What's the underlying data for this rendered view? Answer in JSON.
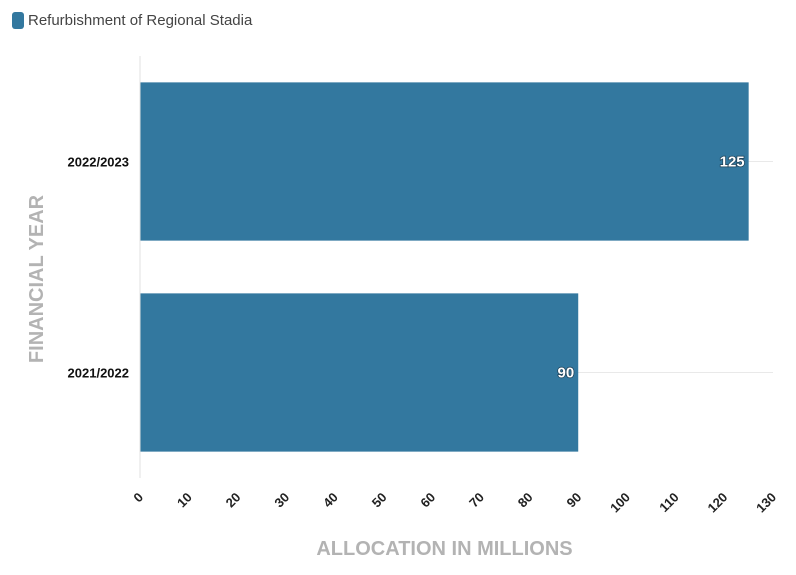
{
  "legend": {
    "label": "Refurbishment of Regional Stadia"
  },
  "chart_data": {
    "type": "bar",
    "orientation": "horizontal",
    "categories": [
      "2022/2023",
      "2021/2022"
    ],
    "series": [
      {
        "name": "Refurbishment of Regional Stadia",
        "values": [
          125,
          90
        ],
        "color": "#33789f"
      }
    ],
    "xlabel": "ALLOCATION IN MILLIONS",
    "ylabel": "FINANCIAL YEAR",
    "xlim": [
      0,
      130
    ],
    "xticks": [
      0,
      10,
      20,
      30,
      40,
      50,
      60,
      70,
      80,
      90,
      100,
      110,
      120,
      130
    ],
    "data_labels": true,
    "legend_position": "top-left"
  }
}
